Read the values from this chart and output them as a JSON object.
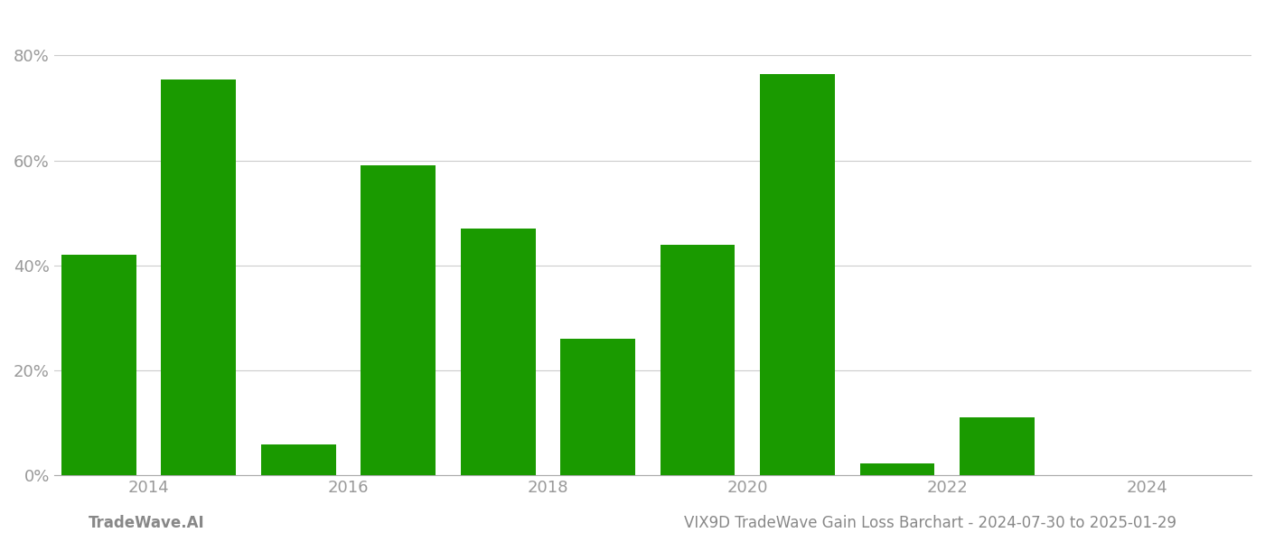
{
  "years": [
    2013,
    2014,
    2015,
    2016,
    2017,
    2018,
    2019,
    2020,
    2021,
    2022,
    2023,
    2024
  ],
  "values": [
    0.42,
    0.755,
    0.058,
    0.59,
    0.47,
    0.26,
    0.44,
    0.765,
    0.022,
    0.11,
    0.0,
    0.0
  ],
  "bar_color": "#1a9a00",
  "background_color": "#ffffff",
  "grid_color": "#cccccc",
  "axis_color": "#aaaaaa",
  "tick_color": "#999999",
  "yticks": [
    0.0,
    0.2,
    0.4,
    0.6,
    0.8
  ],
  "ytick_labels": [
    "0%",
    "20%",
    "40%",
    "60%",
    "80%"
  ],
  "xtick_positions": [
    2013.5,
    2015.5,
    2017.5,
    2019.5,
    2021.5,
    2023.5
  ],
  "xtick_labels": [
    "2014",
    "2016",
    "2018",
    "2020",
    "2022",
    "2024"
  ],
  "ylim": [
    0,
    0.88
  ],
  "xlim_left": 2012.55,
  "xlim_right": 2024.55,
  "bar_width": 0.75,
  "footer_left": "TradeWave.AI",
  "footer_right": "VIX9D TradeWave Gain Loss Barchart - 2024-07-30 to 2025-01-29",
  "footer_color": "#888888",
  "footer_fontsize": 12
}
